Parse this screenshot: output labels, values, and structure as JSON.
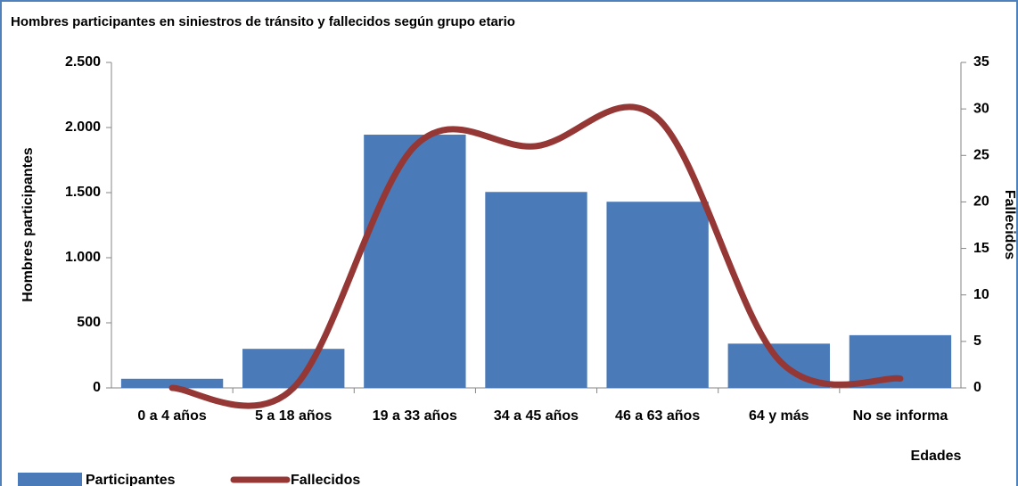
{
  "chart_data": {
    "type": "bar+line",
    "title": "Hombres participantes en siniestros de tránsito y fallecidos según grupo etario",
    "y_label": "Hombres participantes",
    "y2_label": "Fallecidos",
    "x_label": "Edades",
    "categories": [
      "0 a 4 años",
      "5 a 18 años",
      "19 a 33 años",
      "34 a 45 años",
      "46 a 63 años",
      "64 y más",
      "No se informa"
    ],
    "series": [
      {
        "name": "Participantes",
        "type": "bar",
        "color": "#4a7ab8",
        "values": [
          70,
          300,
          1945,
          1505,
          1430,
          340,
          405
        ]
      },
      {
        "name": "Fallecidos",
        "type": "line",
        "axis": "y2",
        "color": "#953735",
        "smooth": true,
        "values": [
          0,
          0,
          26,
          26,
          29,
          3,
          1
        ]
      }
    ],
    "ylim": [
      0,
      2500
    ],
    "yticks": [
      0,
      {
        "value": 500,
        "label": "500"
      },
      {
        "value": 1000,
        "label": "1.000"
      },
      {
        "value": 1500,
        "label": "1.500"
      },
      {
        "value": 2000,
        "label": "2.000"
      },
      {
        "value": 2500,
        "label": "2.500"
      }
    ],
    "y2lim": [
      0,
      35
    ],
    "y2ticks": [
      0,
      5,
      10,
      15,
      20,
      25,
      30,
      35
    ],
    "legend": "bottom-left"
  }
}
